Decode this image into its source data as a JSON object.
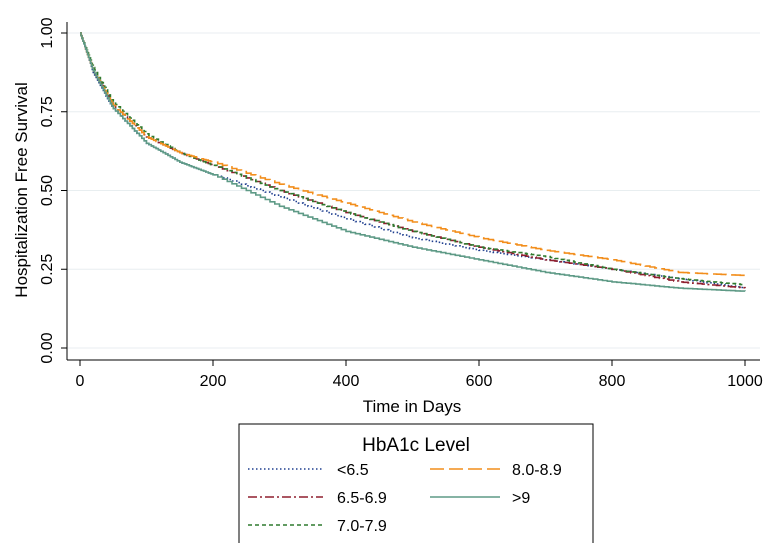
{
  "chart_data": {
    "type": "line",
    "title": "",
    "xlabel": "Time in Days",
    "ylabel": "Hospitalization Free Survival",
    "xlim": [
      0,
      1000
    ],
    "ylim": [
      0,
      1
    ],
    "xticks": [
      "0",
      "200",
      "400",
      "600",
      "800",
      "1000"
    ],
    "yticks": [
      "0.00",
      "0.25",
      "0.50",
      "0.75",
      "1.00"
    ],
    "grid": true,
    "legend_position": "bottom",
    "legend_title": "HbA1c Level",
    "series": [
      {
        "name": "<6.5",
        "color": "#1f3f8f",
        "style": "dotted",
        "x": [
          0,
          20,
          50,
          100,
          150,
          200,
          300,
          400,
          500,
          600,
          700,
          800,
          900,
          1000
        ],
        "y": [
          1.0,
          0.87,
          0.76,
          0.65,
          0.59,
          0.55,
          0.48,
          0.41,
          0.35,
          0.31,
          0.28,
          0.25,
          0.22,
          0.19
        ]
      },
      {
        "name": "6.5-6.9",
        "color": "#8f1f2f",
        "style": "dashdot",
        "x": [
          0,
          20,
          50,
          100,
          150,
          200,
          300,
          400,
          500,
          600,
          700,
          800,
          900,
          1000
        ],
        "y": [
          1.0,
          0.88,
          0.77,
          0.67,
          0.62,
          0.58,
          0.5,
          0.43,
          0.37,
          0.32,
          0.28,
          0.25,
          0.21,
          0.19
        ]
      },
      {
        "name": "7.0-7.9",
        "color": "#2f7a2f",
        "style": "shortdash",
        "x": [
          0,
          20,
          50,
          100,
          150,
          200,
          300,
          400,
          500,
          600,
          700,
          800,
          900,
          1000
        ],
        "y": [
          1.0,
          0.89,
          0.78,
          0.68,
          0.62,
          0.58,
          0.5,
          0.43,
          0.37,
          0.32,
          0.29,
          0.25,
          0.22,
          0.2
        ]
      },
      {
        "name": "8.0-8.9",
        "color": "#f28e1c",
        "style": "longdash",
        "x": [
          0,
          20,
          50,
          100,
          150,
          200,
          300,
          400,
          500,
          600,
          700,
          800,
          900,
          1000
        ],
        "y": [
          1.0,
          0.88,
          0.77,
          0.67,
          0.62,
          0.59,
          0.52,
          0.46,
          0.4,
          0.35,
          0.31,
          0.28,
          0.24,
          0.23
        ]
      },
      {
        "name": ">9",
        "color": "#5e9a86",
        "style": "solid",
        "x": [
          0,
          20,
          50,
          100,
          150,
          200,
          300,
          400,
          500,
          600,
          700,
          800,
          900,
          1000
        ],
        "y": [
          1.0,
          0.88,
          0.76,
          0.65,
          0.59,
          0.55,
          0.45,
          0.37,
          0.32,
          0.28,
          0.24,
          0.21,
          0.19,
          0.18
        ]
      }
    ]
  }
}
